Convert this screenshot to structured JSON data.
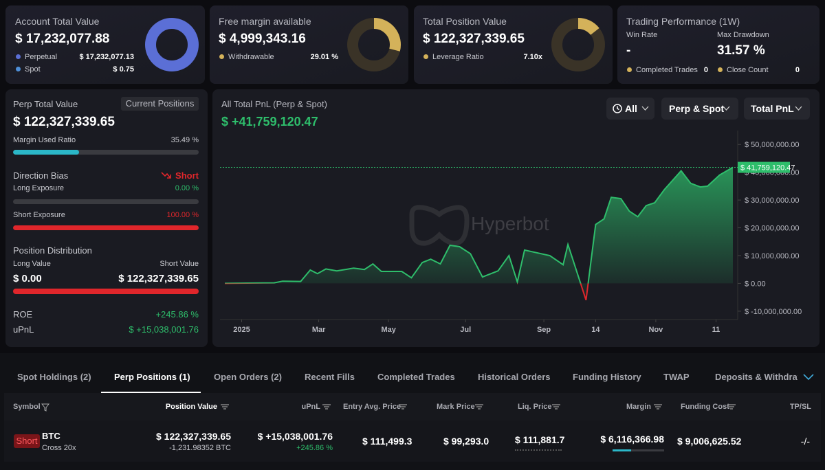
{
  "summary": [
    {
      "title": "Account Total Value",
      "value": "$ 17,232,077.88",
      "items": [
        {
          "label": "Perpetual",
          "value": "$ 17,232,077.13"
        },
        {
          "label": "Spot",
          "value": "$ 0.75"
        }
      ]
    },
    {
      "title": "Free margin available",
      "value": "$ 4,999,343.16",
      "items": [
        {
          "label": "Withdrawable",
          "value": {
            "value": 29.01,
            "label": "29.01 %"
          }
        }
      ]
    },
    {
      "title": "Total Position Value",
      "value": "$ 122,327,339.65",
      "items": [
        {
          "label": "Leverage Ratio",
          "value": "7.10x"
        }
      ]
    }
  ],
  "performance": {
    "title": "Trading Performance (1W)",
    "win_rate_label": "Win Rate",
    "win_rate": "-",
    "drawdown_label": "Max Drawdown",
    "drawdown": "31.57 %",
    "completed_label": "Completed Trades",
    "completed": "0",
    "close_label": "Close Count",
    "close": "0"
  },
  "perp": {
    "title": "Perp Total Value",
    "button": "Current Positions",
    "value": "$ 122,327,339.65",
    "margin_label": "Margin Used Ratio",
    "margin_ratio": {
      "value": 35.49,
      "label": "35.49 %"
    },
    "bias_label": "Direction Bias",
    "bias": "Short",
    "long_label": "Long Exposure",
    "long": {
      "value": 0,
      "label": "0.00 %"
    },
    "short_label": "Short Exposure",
    "short": {
      "value": 100,
      "label": "100.00 %"
    },
    "dist_label": "Position Distribution",
    "long_value_label": "Long Value",
    "long_value": "$ 0.00",
    "short_value_label": "Short Value",
    "short_value": "$ 122,327,339.65",
    "roe_label": "ROE",
    "roe": "+245.86 %",
    "upnl_label": "uPnL",
    "upnl": "$ +15,038,001.76"
  },
  "chart_data": {
    "type": "area",
    "title": "All Total PnL (Perp & Spot)",
    "total": "$ +41,759,120.47",
    "watermark": "Hyperbot",
    "filters": [
      "All",
      "Perp & Spot",
      "Total PnL"
    ],
    "x": [
      -14,
      27,
      34,
      49,
      57,
      63,
      70,
      79,
      93,
      102,
      109,
      116,
      133,
      141,
      150,
      157,
      165,
      173,
      181,
      190,
      200,
      213,
      222,
      229,
      235,
      256,
      267,
      271,
      286,
      294,
      301,
      307,
      315,
      322,
      329,
      336,
      343,
      351,
      365,
      373,
      381,
      387,
      397,
      408
    ],
    "values": [
      0,
      200000,
      800000,
      700000,
      4800000,
      3500000,
      5200000,
      4500000,
      5500000,
      5000000,
      7000000,
      4300000,
      4300000,
      2000000,
      7500000,
      8700000,
      7000000,
      13700000,
      13200000,
      10700000,
      2300000,
      4500000,
      10000000,
      500000,
      12000000,
      10000000,
      6700000,
      14000000,
      -6000000,
      21200000,
      23200000,
      31000000,
      30500000,
      26000000,
      24000000,
      28000000,
      29000000,
      33700000,
      40500000,
      36000000,
      34700000,
      35000000,
      39000000,
      41759120.47
    ],
    "color": "#2ebd6b",
    "negative_color": "#e0262b",
    "xlim": [
      -18,
      412
    ],
    "xticks": [
      {
        "value": 0,
        "label": "2025"
      },
      {
        "value": 64,
        "label": "Mar"
      },
      {
        "value": 122,
        "label": "May"
      },
      {
        "value": 186,
        "label": "Jul"
      },
      {
        "value": 251,
        "label": "Sep"
      },
      {
        "value": 294,
        "label": "14"
      },
      {
        "value": 344,
        "label": "Nov"
      },
      {
        "value": 394,
        "label": "11"
      }
    ],
    "ylim": [
      -13000000,
      55000000
    ],
    "yticks": [
      {
        "value": 50000000,
        "label": "$ 50,000,000.00"
      },
      {
        "value": 40000000,
        "label": "$ 40,000,000.00"
      },
      {
        "value": 30000000,
        "label": "$ 30,000,000.00"
      },
      {
        "value": 20000000,
        "label": "$ 20,000,000.00"
      },
      {
        "value": 10000000,
        "label": "$ 10,000,000.00"
      },
      {
        "value": 0,
        "label": "$ 0.00"
      },
      {
        "value": -10000000,
        "label": "$ -10,000,000.00"
      }
    ],
    "current": {
      "value": 41759120.47,
      "label": "$ 41,759,120.47"
    }
  },
  "tabs": [
    "Spot Holdings (2)",
    "Perp Positions (1)",
    "Open Orders (2)",
    "Recent Fills",
    "Completed Trades",
    "Historical Orders",
    "Funding History",
    "TWAP",
    "Deposits & Withdrawals"
  ],
  "table": {
    "headers": [
      "Symbol",
      "Position Value",
      "uPnL",
      "Entry Avg. Price",
      "Mark Price",
      "Liq. Price",
      "Margin",
      "Funding Cost",
      "TP/SL"
    ],
    "rows": [
      {
        "side": "Short",
        "symbol": "BTC",
        "mode": "Cross 20x",
        "position_value": "$ 122,327,339.65",
        "size": "-1,231.98352 BTC",
        "upnl": "$ +15,038,001.76",
        "roe": "+245.86 %",
        "entry": "$ 111,499.3",
        "mark": "$ 99,293.0",
        "liq": "$ 111,881.7",
        "margin": "$ 6,116,366.98",
        "funding": "$ 9,006,625.52",
        "tpsl": "-/-"
      }
    ]
  }
}
